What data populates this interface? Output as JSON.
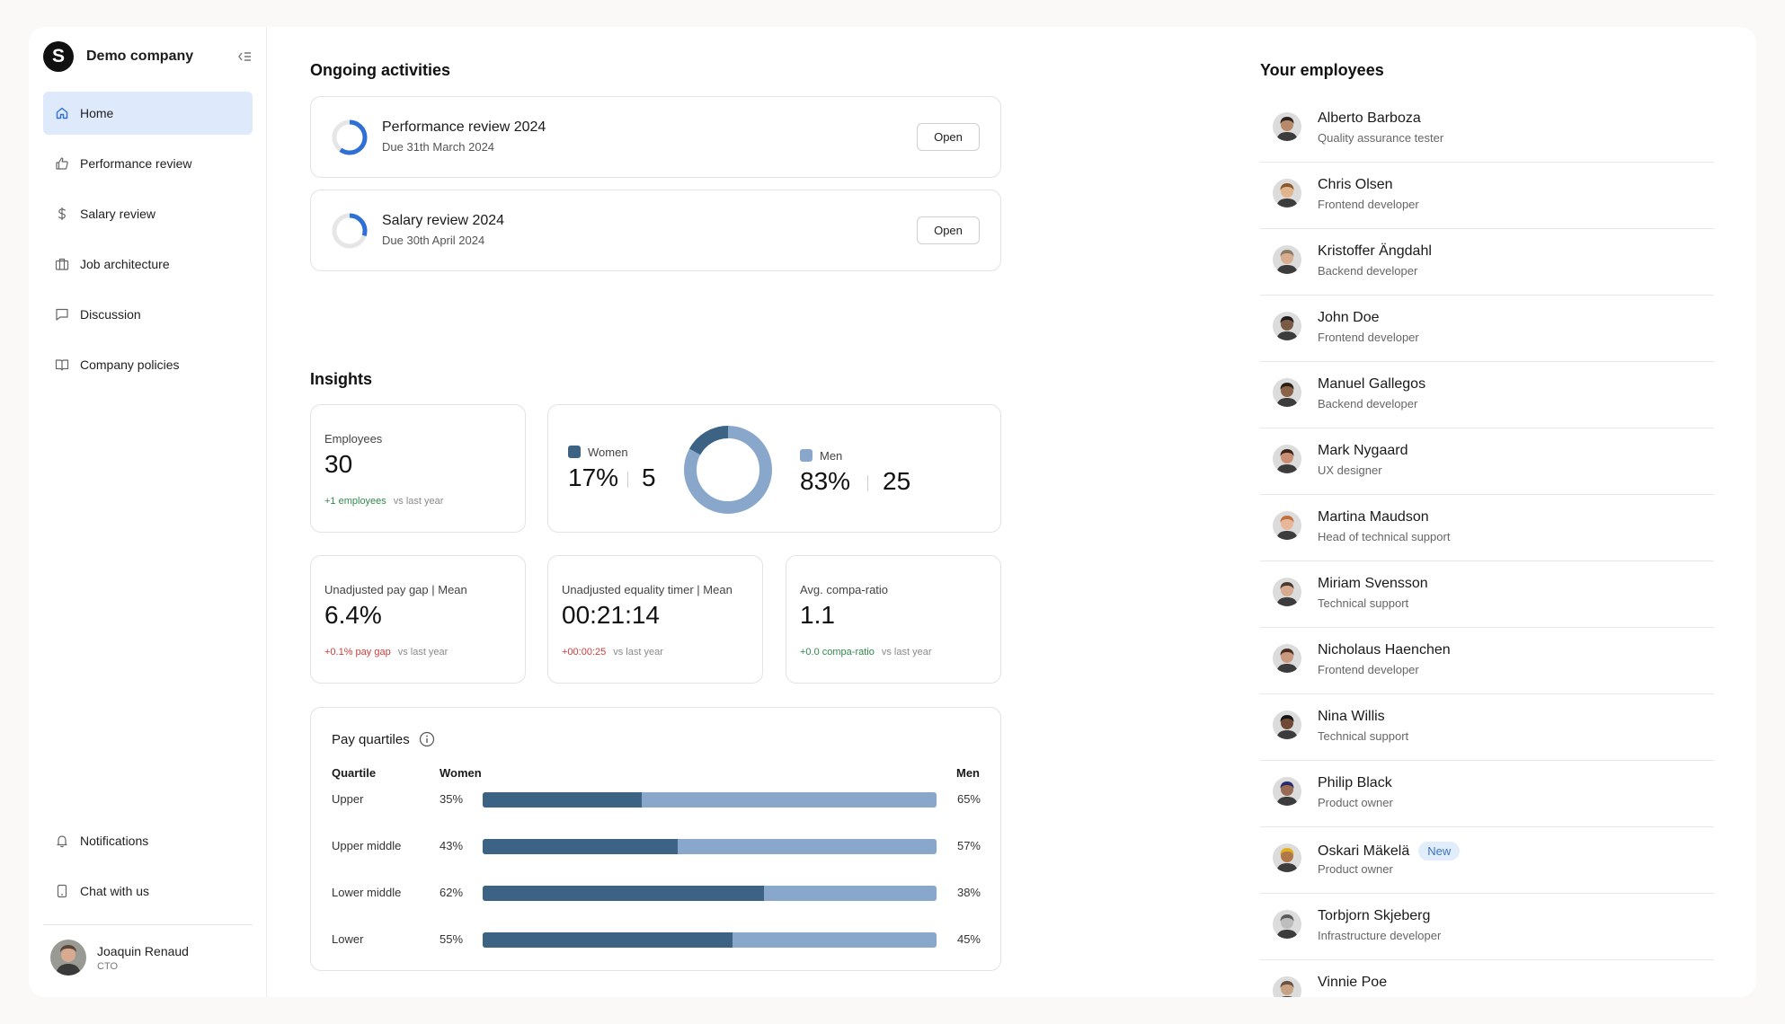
{
  "company": {
    "logo_letter": "S",
    "name": "Demo company"
  },
  "nav": {
    "items": [
      {
        "label": "Home",
        "icon": "home-icon",
        "active": true
      },
      {
        "label": "Performance review",
        "icon": "thumbs-up-icon"
      },
      {
        "label": "Salary review",
        "icon": "dollar-icon"
      },
      {
        "label": "Job architecture",
        "icon": "briefcase-icon"
      },
      {
        "label": "Discussion",
        "icon": "chat-bubble-icon"
      },
      {
        "label": "Company policies",
        "icon": "book-icon"
      }
    ],
    "bottom": [
      {
        "label": "Notifications",
        "icon": "bell-icon"
      },
      {
        "label": "Chat with us",
        "icon": "phone-icon"
      }
    ]
  },
  "user": {
    "name": "Joaquin Renaud",
    "role": "CTO"
  },
  "activities": {
    "title": "Ongoing activities",
    "items": [
      {
        "title": "Performance review 2024",
        "due": "Due 31th March 2024",
        "button": "Open",
        "progress": 0.6
      },
      {
        "title": "Salary review 2024",
        "due": "Due 30th April 2024",
        "button": "Open",
        "progress": 0.3
      }
    ]
  },
  "insights": {
    "title": "Insights",
    "employees": {
      "label": "Employees",
      "value": "30",
      "delta": "+1 employees",
      "vs": "vs last year"
    },
    "gender": {
      "women_label": "Women",
      "women_pct": "17%",
      "women_count": "5",
      "men_label": "Men",
      "men_pct": "83%",
      "men_count": "25",
      "women_color": "#3d6384",
      "men_color": "#89a7cb",
      "women_share": 0.17
    },
    "pay_gap": {
      "label": "Unadjusted pay gap | Mean",
      "value": "6.4%",
      "delta": "+0.1% pay gap",
      "vs": "vs last year"
    },
    "equality": {
      "label": "Unadjusted equality timer | Mean",
      "value": "00:21:14",
      "delta": "+00:00:25",
      "vs": "vs last year"
    },
    "compa": {
      "label": "Avg. compa-ratio",
      "value": "1.1",
      "delta": "+0.0 compa-ratio",
      "vs": "vs last year"
    }
  },
  "pay_quartiles": {
    "title": "Pay quartiles",
    "headers": {
      "quartile": "Quartile",
      "women": "Women",
      "men": "Men"
    },
    "rows": [
      {
        "name": "Upper",
        "women": "35%",
        "men": "65%",
        "women_share": 0.35
      },
      {
        "name": "Upper middle",
        "women": "43%",
        "men": "57%",
        "women_share": 0.43
      },
      {
        "name": "Lower middle",
        "women": "62%",
        "men": "38%",
        "women_share": 0.62
      },
      {
        "name": "Lower",
        "women": "55%",
        "men": "45%",
        "women_share": 0.55
      }
    ]
  },
  "employees": {
    "title": "Your employees",
    "list": [
      {
        "name": "Alberto Barboza",
        "role": "Quality assurance tester",
        "skin": "#b98a6a",
        "hair": "#2b2420"
      },
      {
        "name": "Chris Olsen",
        "role": "Frontend developer",
        "skin": "#e0b48c",
        "hair": "#8a5a2c"
      },
      {
        "name": "Kristoffer Ängdahl",
        "role": "Backend developer",
        "skin": "#d9ae8e",
        "hair": "#8b7a66"
      },
      {
        "name": "John Doe",
        "role": "Frontend developer",
        "skin": "#7a5a44",
        "hair": "#1c1c1c"
      },
      {
        "name": "Manuel Gallegos",
        "role": "Backend developer",
        "skin": "#8a6248",
        "hair": "#2b2016"
      },
      {
        "name": "Mark Nygaard",
        "role": "UX designer",
        "skin": "#c98f74",
        "hair": "#3b2419"
      },
      {
        "name": "Martina Maudson",
        "role": "Head of technical support",
        "skin": "#e6b79a",
        "hair": "#c0713f"
      },
      {
        "name": "Miriam Svensson",
        "role": "Technical support",
        "skin": "#d6ab90",
        "hair": "#4a3a30"
      },
      {
        "name": "Nicholaus Haenchen",
        "role": "Frontend developer",
        "skin": "#c99a7e",
        "hair": "#4b2e22"
      },
      {
        "name": "Nina Willis",
        "role": "Technical support",
        "skin": "#6e4a36",
        "hair": "#141414"
      },
      {
        "name": "Philip Black",
        "role": "Product owner",
        "skin": "#9a6a52",
        "hair": "#2a2a6a"
      },
      {
        "name": "Oskari Mäkelä",
        "role": "Product owner",
        "badge": "New",
        "skin": "#b07848",
        "hair": "#e0b020"
      },
      {
        "name": "Torbjorn Skjeberg",
        "role": "Infrastructure developer",
        "skin": "#bdbdbd",
        "hair": "#5a5a5a"
      },
      {
        "name": "Vinnie Poe",
        "role": "",
        "skin": "#c9a284",
        "hair": "#6a5240"
      }
    ]
  }
}
